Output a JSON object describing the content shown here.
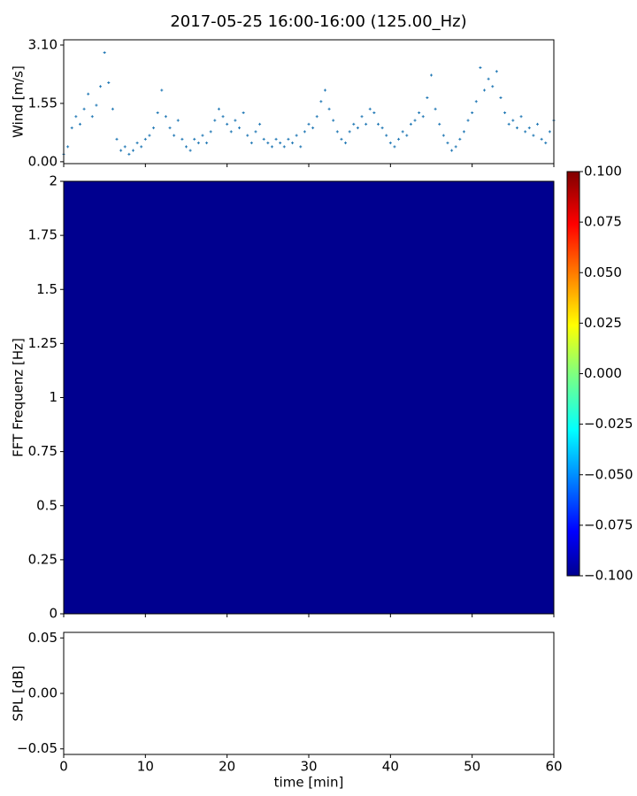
{
  "chart_data": [
    {
      "type": "scatter",
      "title": "2017-05-25 16:00-16:00 (125.00_Hz)",
      "ylabel": "Wind [m/s]",
      "color": "#1f77b4",
      "xlim": [
        0,
        60
      ],
      "ylim": [
        -0.05,
        3.24
      ],
      "yticks": [
        {
          "value": 0,
          "label": "0.00"
        },
        {
          "value": 1.55,
          "label": "1.55"
        },
        {
          "value": 3.1,
          "label": "3.10"
        }
      ],
      "x": [
        0,
        0.5,
        1,
        1.5,
        2,
        2.5,
        3,
        3.5,
        4,
        4.5,
        5,
        5.5,
        6,
        6.5,
        7,
        7.5,
        8,
        8.5,
        9,
        9.5,
        10,
        10.5,
        11,
        11.5,
        12,
        12.5,
        13,
        13.5,
        14,
        14.5,
        15,
        15.5,
        16,
        16.5,
        17,
        17.5,
        18,
        18.5,
        19,
        19.5,
        20,
        20.5,
        21,
        21.5,
        22,
        22.5,
        23,
        23.5,
        24,
        24.5,
        25,
        25.5,
        26,
        26.5,
        27,
        27.5,
        28,
        28.5,
        29,
        29.5,
        30,
        30.5,
        31,
        31.5,
        32,
        32.5,
        33,
        33.5,
        34,
        34.5,
        35,
        35.5,
        36,
        36.5,
        37,
        37.5,
        38,
        38.5,
        39,
        39.5,
        40,
        40.5,
        41,
        41.5,
        42,
        42.5,
        43,
        43.5,
        44,
        44.5,
        45,
        45.5,
        46,
        46.5,
        47,
        47.5,
        48,
        48.5,
        49,
        49.5,
        50,
        50.5,
        51,
        51.5,
        52,
        52.5,
        53,
        53.5,
        54,
        54.5,
        55,
        55.5,
        56,
        56.5,
        57,
        57.5,
        58,
        58.5,
        59,
        59.5,
        60
      ],
      "values": [
        0.2,
        0.4,
        0.9,
        1.2,
        1.0,
        1.4,
        1.8,
        1.2,
        1.5,
        2.0,
        2.9,
        2.1,
        1.4,
        0.6,
        0.3,
        0.4,
        0.2,
        0.3,
        0.5,
        0.4,
        0.6,
        0.7,
        0.9,
        1.3,
        1.9,
        1.2,
        0.9,
        0.7,
        1.1,
        0.6,
        0.4,
        0.3,
        0.6,
        0.5,
        0.7,
        0.5,
        0.8,
        1.1,
        1.4,
        1.2,
        1.0,
        0.8,
        1.1,
        0.9,
        1.3,
        0.7,
        0.5,
        0.8,
        1.0,
        0.6,
        0.5,
        0.4,
        0.6,
        0.5,
        0.4,
        0.6,
        0.5,
        0.7,
        0.4,
        0.8,
        1.0,
        0.9,
        1.2,
        1.6,
        1.9,
        1.4,
        1.1,
        0.8,
        0.6,
        0.5,
        0.8,
        1.0,
        0.9,
        1.2,
        1.0,
        1.4,
        1.3,
        1.0,
        0.9,
        0.7,
        0.5,
        0.4,
        0.6,
        0.8,
        0.7,
        1.0,
        1.1,
        1.3,
        1.2,
        1.7,
        2.3,
        1.4,
        1.0,
        0.7,
        0.5,
        0.3,
        0.4,
        0.6,
        0.8,
        1.1,
        1.3,
        1.6,
        2.5,
        1.9,
        2.2,
        2.0,
        2.4,
        1.7,
        1.3,
        1.0,
        1.1,
        0.9,
        1.2,
        0.8,
        0.9,
        0.7,
        1.0,
        0.6,
        0.5,
        0.8,
        1.1
      ]
    },
    {
      "type": "heatmap",
      "ylabel": "FFT Frequenz [Hz]",
      "color": "#00008f",
      "colormap": "jet",
      "xlim": [
        0,
        60
      ],
      "ylim": [
        0,
        2
      ],
      "yticks": [
        0,
        0.25,
        0.5,
        0.75,
        1,
        1.25,
        1.5,
        1.75,
        2
      ],
      "clim": [
        -0.1,
        0.1
      ],
      "cticks": [
        {
          "value": -0.1,
          "label": "−0.100"
        },
        {
          "value": -0.075,
          "label": "−0.075"
        },
        {
          "value": -0.05,
          "label": "−0.050"
        },
        {
          "value": -0.025,
          "label": "−0.025"
        },
        {
          "value": 0,
          "label": "0.000"
        },
        {
          "value": 0.025,
          "label": "0.025"
        },
        {
          "value": 0.05,
          "label": "0.050"
        },
        {
          "value": 0.075,
          "label": "0.075"
        },
        {
          "value": 0.1,
          "label": "0.100"
        }
      ]
    },
    {
      "type": "line",
      "ylabel": "SPL [dB]",
      "xlabel": "time [min]",
      "xlim": [
        0,
        60
      ],
      "xticks": [
        0,
        10,
        20,
        30,
        40,
        50,
        60
      ],
      "ylim": [
        -0.055,
        0.055
      ],
      "yticks": [
        {
          "value": -0.05,
          "label": "−0.05"
        },
        {
          "value": 0,
          "label": "0.00"
        },
        {
          "value": 0.05,
          "label": "0.05"
        }
      ]
    }
  ]
}
